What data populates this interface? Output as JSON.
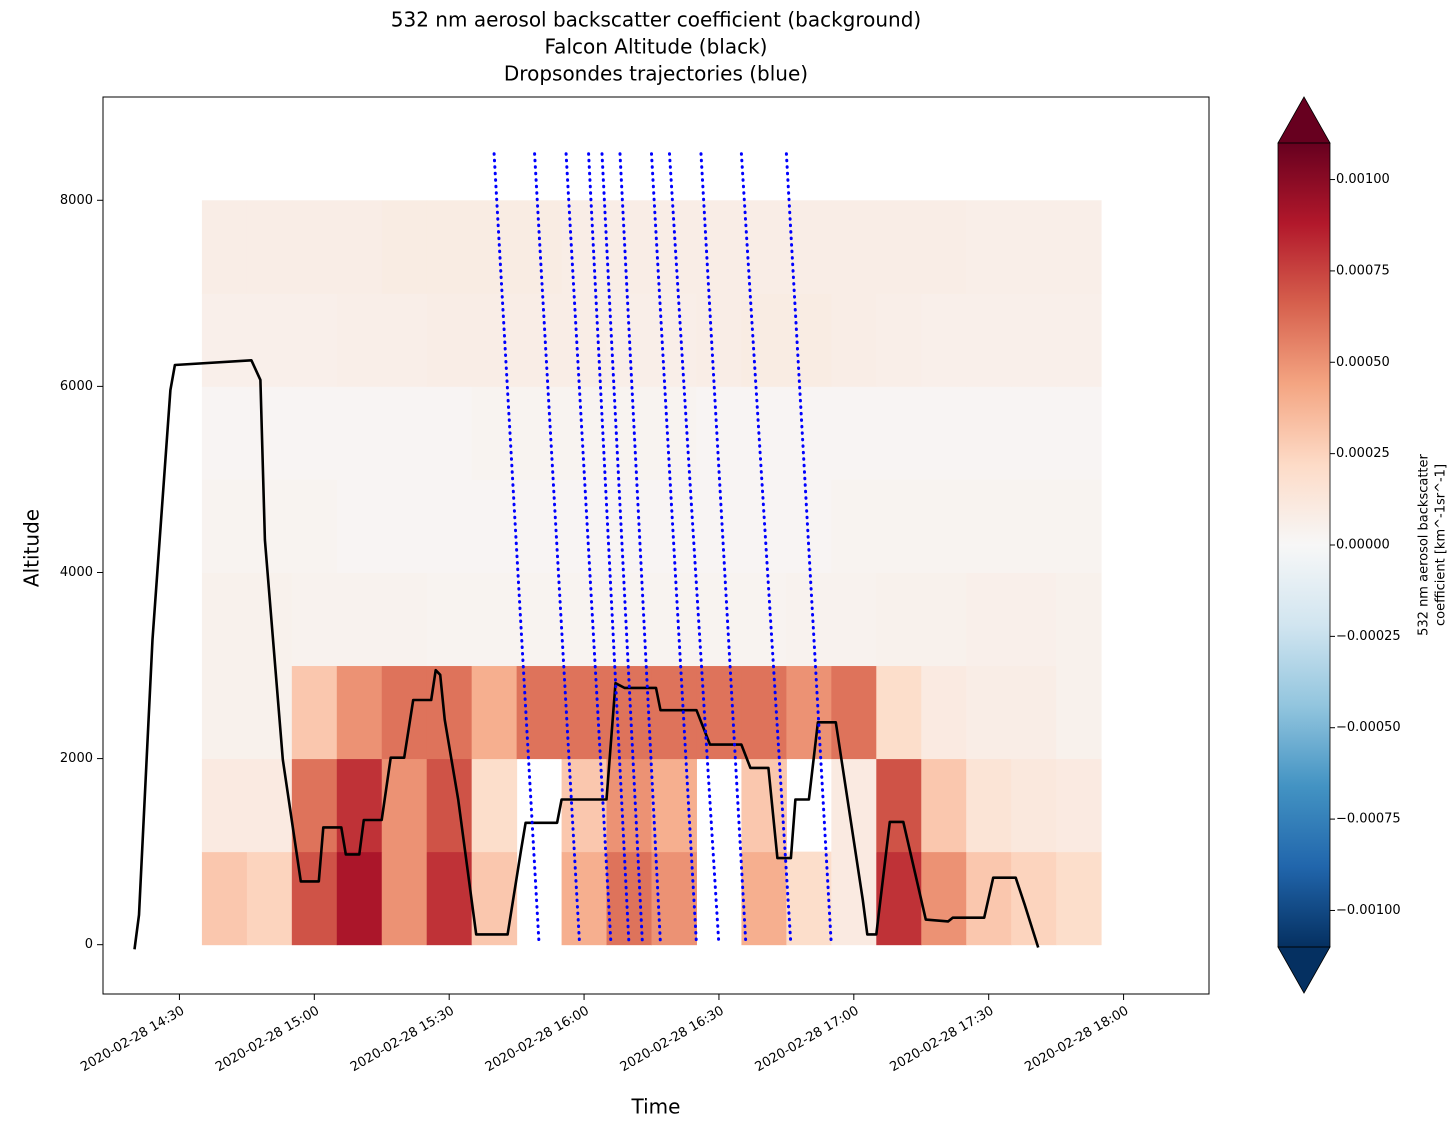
{
  "chart_data": {
    "type": "heatmap",
    "title": [
      "532 nm aerosol backscatter coefficient (background)",
      "Falcon Altitude (black)",
      "Dropsondes trajectories (blue)"
    ],
    "xlabel": "Time",
    "ylabel": "Altitude",
    "xlim": [
      "2020-02-28 14:13",
      "2020-02-28 18:19"
    ],
    "xticks": [
      "2020-02-28 14:30",
      "2020-02-28 15:00",
      "2020-02-28 15:30",
      "2020-02-28 16:00",
      "2020-02-28 16:30",
      "2020-02-28 17:00",
      "2020-02-28 17:30",
      "2020-02-28 18:00"
    ],
    "ylim": [
      -530,
      9110
    ],
    "yticks": [
      0,
      2000,
      4000,
      6000,
      8000
    ],
    "x_edges": [
      "2020-02-28 14:35",
      "2020-02-28 14:45",
      "2020-02-28 14:55",
      "2020-02-28 15:05",
      "2020-02-28 15:15",
      "2020-02-28 15:25",
      "2020-02-28 15:35",
      "2020-02-28 15:45",
      "2020-02-28 15:55",
      "2020-02-28 16:05",
      "2020-02-28 16:15",
      "2020-02-28 16:25",
      "2020-02-28 16:35",
      "2020-02-28 16:45",
      "2020-02-28 16:55",
      "2020-02-28 17:05",
      "2020-02-28 17:15",
      "2020-02-28 17:25",
      "2020-02-28 17:35",
      "2020-02-28 17:45",
      "2020-02-28 17:55"
    ],
    "y_edges": [
      0,
      1000,
      2000,
      3000,
      4000,
      5000,
      6000,
      7000,
      8000
    ],
    "z": [
      [
        0.0003,
        0.00025,
        0.0007,
        0.0009,
        0.0005,
        0.0008,
        0.0003,
        null,
        0.0004,
        0.0006,
        0.0005,
        null,
        0.0004,
        0.0002,
        0.0001,
        0.0008,
        0.0005,
        0.0003,
        0.00025,
        0.0002
      ],
      [
        0.0001,
        0.0001,
        0.0006,
        0.0008,
        0.0005,
        0.0007,
        0.0002,
        null,
        0.0003,
        0.0005,
        0.0004,
        null,
        0.0003,
        null,
        0.0001,
        0.0007,
        0.0003,
        0.00015,
        0.00012,
        0.0001
      ],
      [
        5e-05,
        5e-05,
        0.0003,
        0.0005,
        0.0006,
        0.0006,
        0.0004,
        0.0006,
        0.0006,
        0.0006,
        0.0006,
        0.0006,
        0.0006,
        0.0005,
        0.0006,
        0.0002,
        0.0001,
        8e-05,
        8e-05,
        5e-05
      ],
      [
        5e-05,
        5e-05,
        4e-05,
        4e-05,
        4e-05,
        3e-05,
        3e-05,
        3e-05,
        3e-05,
        3e-05,
        3e-05,
        3e-05,
        3e-05,
        4e-05,
        4e-05,
        5e-05,
        5e-05,
        6e-05,
        6e-05,
        5e-05
      ],
      [
        3e-05,
        3e-05,
        3e-05,
        2e-05,
        2e-05,
        2e-05,
        2e-05,
        2e-05,
        2e-05,
        2e-05,
        2e-05,
        2e-05,
        2e-05,
        2e-05,
        3e-05,
        3e-05,
        3e-05,
        3e-05,
        3e-05,
        3e-05
      ],
      [
        2e-05,
        2e-05,
        2e-05,
        2e-05,
        2e-05,
        2e-05,
        3e-05,
        3e-05,
        3e-05,
        3e-05,
        3e-05,
        2e-05,
        2e-05,
        2e-05,
        2e-05,
        2e-05,
        2e-05,
        2e-05,
        2e-05,
        2e-05
      ],
      [
        6e-05,
        6e-05,
        6e-05,
        7e-05,
        7e-05,
        8e-05,
        8e-05,
        8e-05,
        8e-05,
        7e-05,
        7e-05,
        8e-05,
        9e-05,
        9e-05,
        8e-05,
        7e-05,
        6e-05,
        6e-05,
        6e-05,
        6e-05
      ],
      [
        8e-05,
        8e-05,
        8e-05,
        8e-05,
        9e-05,
        9e-05,
        9e-05,
        9e-05,
        8e-05,
        8e-05,
        8e-05,
        8e-05,
        8e-05,
        8e-05,
        8e-05,
        8e-05,
        8e-05,
        7e-05,
        7e-05,
        7e-05
      ]
    ],
    "colormap": [
      "#053061",
      "#2166ac",
      "#4393c3",
      "#92c5de",
      "#d1e5f0",
      "#f7f7f7",
      "#fddbc7",
      "#f4a582",
      "#d6604d",
      "#b2182b",
      "#67001f"
    ],
    "clim": [
      -0.0011,
      0.0011
    ],
    "colorbar_extend": "both",
    "colorbar_label": [
      "532 nm aerosol backscatter",
      "coefficient [km^-1sr^-1]"
    ],
    "colorbar_ticks": [
      {
        "value": -0.001,
        "label": "−0.00100"
      },
      {
        "value": -0.00075,
        "label": "−0.00075"
      },
      {
        "value": -0.0005,
        "label": "−0.00050"
      },
      {
        "value": -0.00025,
        "label": "−0.00025"
      },
      {
        "value": 0,
        "label": "0.00000"
      },
      {
        "value": 0.00025,
        "label": "0.00025"
      },
      {
        "value": 0.0005,
        "label": "0.00050"
      },
      {
        "value": 0.00075,
        "label": "0.00075"
      },
      {
        "value": 0.001,
        "label": "0.00100"
      }
    ],
    "series": [
      {
        "color": "#000000",
        "style": "solid",
        "x": [
          "2020-02-28 14:20",
          "2020-02-28 14:21",
          "2020-02-28 14:24",
          "2020-02-28 14:28",
          "2020-02-28 14:29",
          "2020-02-28 14:46",
          "2020-02-28 14:48",
          "2020-02-28 14:49",
          "2020-02-28 14:53",
          "2020-02-28 14:57",
          "2020-02-28 15:01",
          "2020-02-28 15:02",
          "2020-02-28 15:06",
          "2020-02-28 15:07",
          "2020-02-28 15:10",
          "2020-02-28 15:11",
          "2020-02-28 15:15",
          "2020-02-28 15:17",
          "2020-02-28 15:20",
          "2020-02-28 15:22",
          "2020-02-28 15:26",
          "2020-02-28 15:27",
          "2020-02-28 15:28",
          "2020-02-28 15:29",
          "2020-02-28 15:32",
          "2020-02-28 15:36",
          "2020-02-28 15:43",
          "2020-02-28 15:46",
          "2020-02-28 15:47",
          "2020-02-28 15:54",
          "2020-02-28 15:55",
          "2020-02-28 16:05",
          "2020-02-28 16:07",
          "2020-02-28 16:09",
          "2020-02-28 16:16",
          "2020-02-28 16:17",
          "2020-02-28 16:25",
          "2020-02-28 16:28",
          "2020-02-28 16:35",
          "2020-02-28 16:37",
          "2020-02-28 16:41",
          "2020-02-28 16:43",
          "2020-02-28 16:46",
          "2020-02-28 16:47",
          "2020-02-28 16:50",
          "2020-02-28 16:52",
          "2020-02-28 16:56",
          "2020-02-28 17:02",
          "2020-02-28 17:03",
          "2020-02-28 17:05",
          "2020-02-28 17:08",
          "2020-02-28 17:11",
          "2020-02-28 17:16",
          "2020-02-28 17:21",
          "2020-02-28 17:22",
          "2020-02-28 17:29",
          "2020-02-28 17:31",
          "2020-02-28 17:36",
          "2020-02-28 17:38",
          "2020-02-28 17:41"
        ],
        "values": [
          -50,
          320,
          3280,
          5960,
          6230,
          6280,
          6070,
          4350,
          1990,
          680,
          680,
          1260,
          1260,
          970,
          970,
          1340,
          1340,
          2010,
          2010,
          2630,
          2630,
          2950,
          2900,
          2420,
          1560,
          110,
          110,
          1020,
          1310,
          1310,
          1560,
          1560,
          2810,
          2760,
          2760,
          2520,
          2520,
          2150,
          2150,
          1900,
          1900,
          930,
          930,
          1560,
          1560,
          2390,
          2390,
          480,
          110,
          110,
          1320,
          1320,
          270,
          250,
          290,
          290,
          720,
          720,
          430,
          -30
        ]
      },
      {
        "color": "#0000ff",
        "style": "dotted",
        "x": [
          "2020-02-28 15:40",
          "2020-02-28 15:50"
        ],
        "values": [
          8500,
          0
        ]
      },
      {
        "color": "#0000ff",
        "style": "dotted",
        "x": [
          "2020-02-28 15:49",
          "2020-02-28 15:59"
        ],
        "values": [
          8500,
          0
        ]
      },
      {
        "color": "#0000ff",
        "style": "dotted",
        "x": [
          "2020-02-28 15:56",
          "2020-02-28 16:06"
        ],
        "values": [
          8500,
          0
        ]
      },
      {
        "color": "#0000ff",
        "style": "dotted",
        "x": [
          "2020-02-28 16:01",
          "2020-02-28 16:10"
        ],
        "values": [
          8500,
          0
        ]
      },
      {
        "color": "#0000ff",
        "style": "dotted",
        "x": [
          "2020-02-28 16:04",
          "2020-02-28 16:13"
        ],
        "values": [
          8500,
          0
        ]
      },
      {
        "color": "#0000ff",
        "style": "dotted",
        "x": [
          "2020-02-28 16:08",
          "2020-02-28 16:17"
        ],
        "values": [
          8500,
          0
        ]
      },
      {
        "color": "#0000ff",
        "style": "dotted",
        "x": [
          "2020-02-28 16:15",
          "2020-02-28 16:25"
        ],
        "values": [
          8500,
          0
        ]
      },
      {
        "color": "#0000ff",
        "style": "dotted",
        "x": [
          "2020-02-28 16:19",
          "2020-02-28 16:30"
        ],
        "values": [
          8500,
          0
        ]
      },
      {
        "color": "#0000ff",
        "style": "dotted",
        "x": [
          "2020-02-28 16:26",
          "2020-02-28 16:36"
        ],
        "values": [
          8500,
          0
        ]
      },
      {
        "color": "#0000ff",
        "style": "dotted",
        "x": [
          "2020-02-28 16:35",
          "2020-02-28 16:46"
        ],
        "values": [
          8500,
          0
        ]
      },
      {
        "color": "#0000ff",
        "style": "dotted",
        "x": [
          "2020-02-28 16:45",
          "2020-02-28 16:55"
        ],
        "values": [
          8500,
          0
        ]
      }
    ]
  }
}
